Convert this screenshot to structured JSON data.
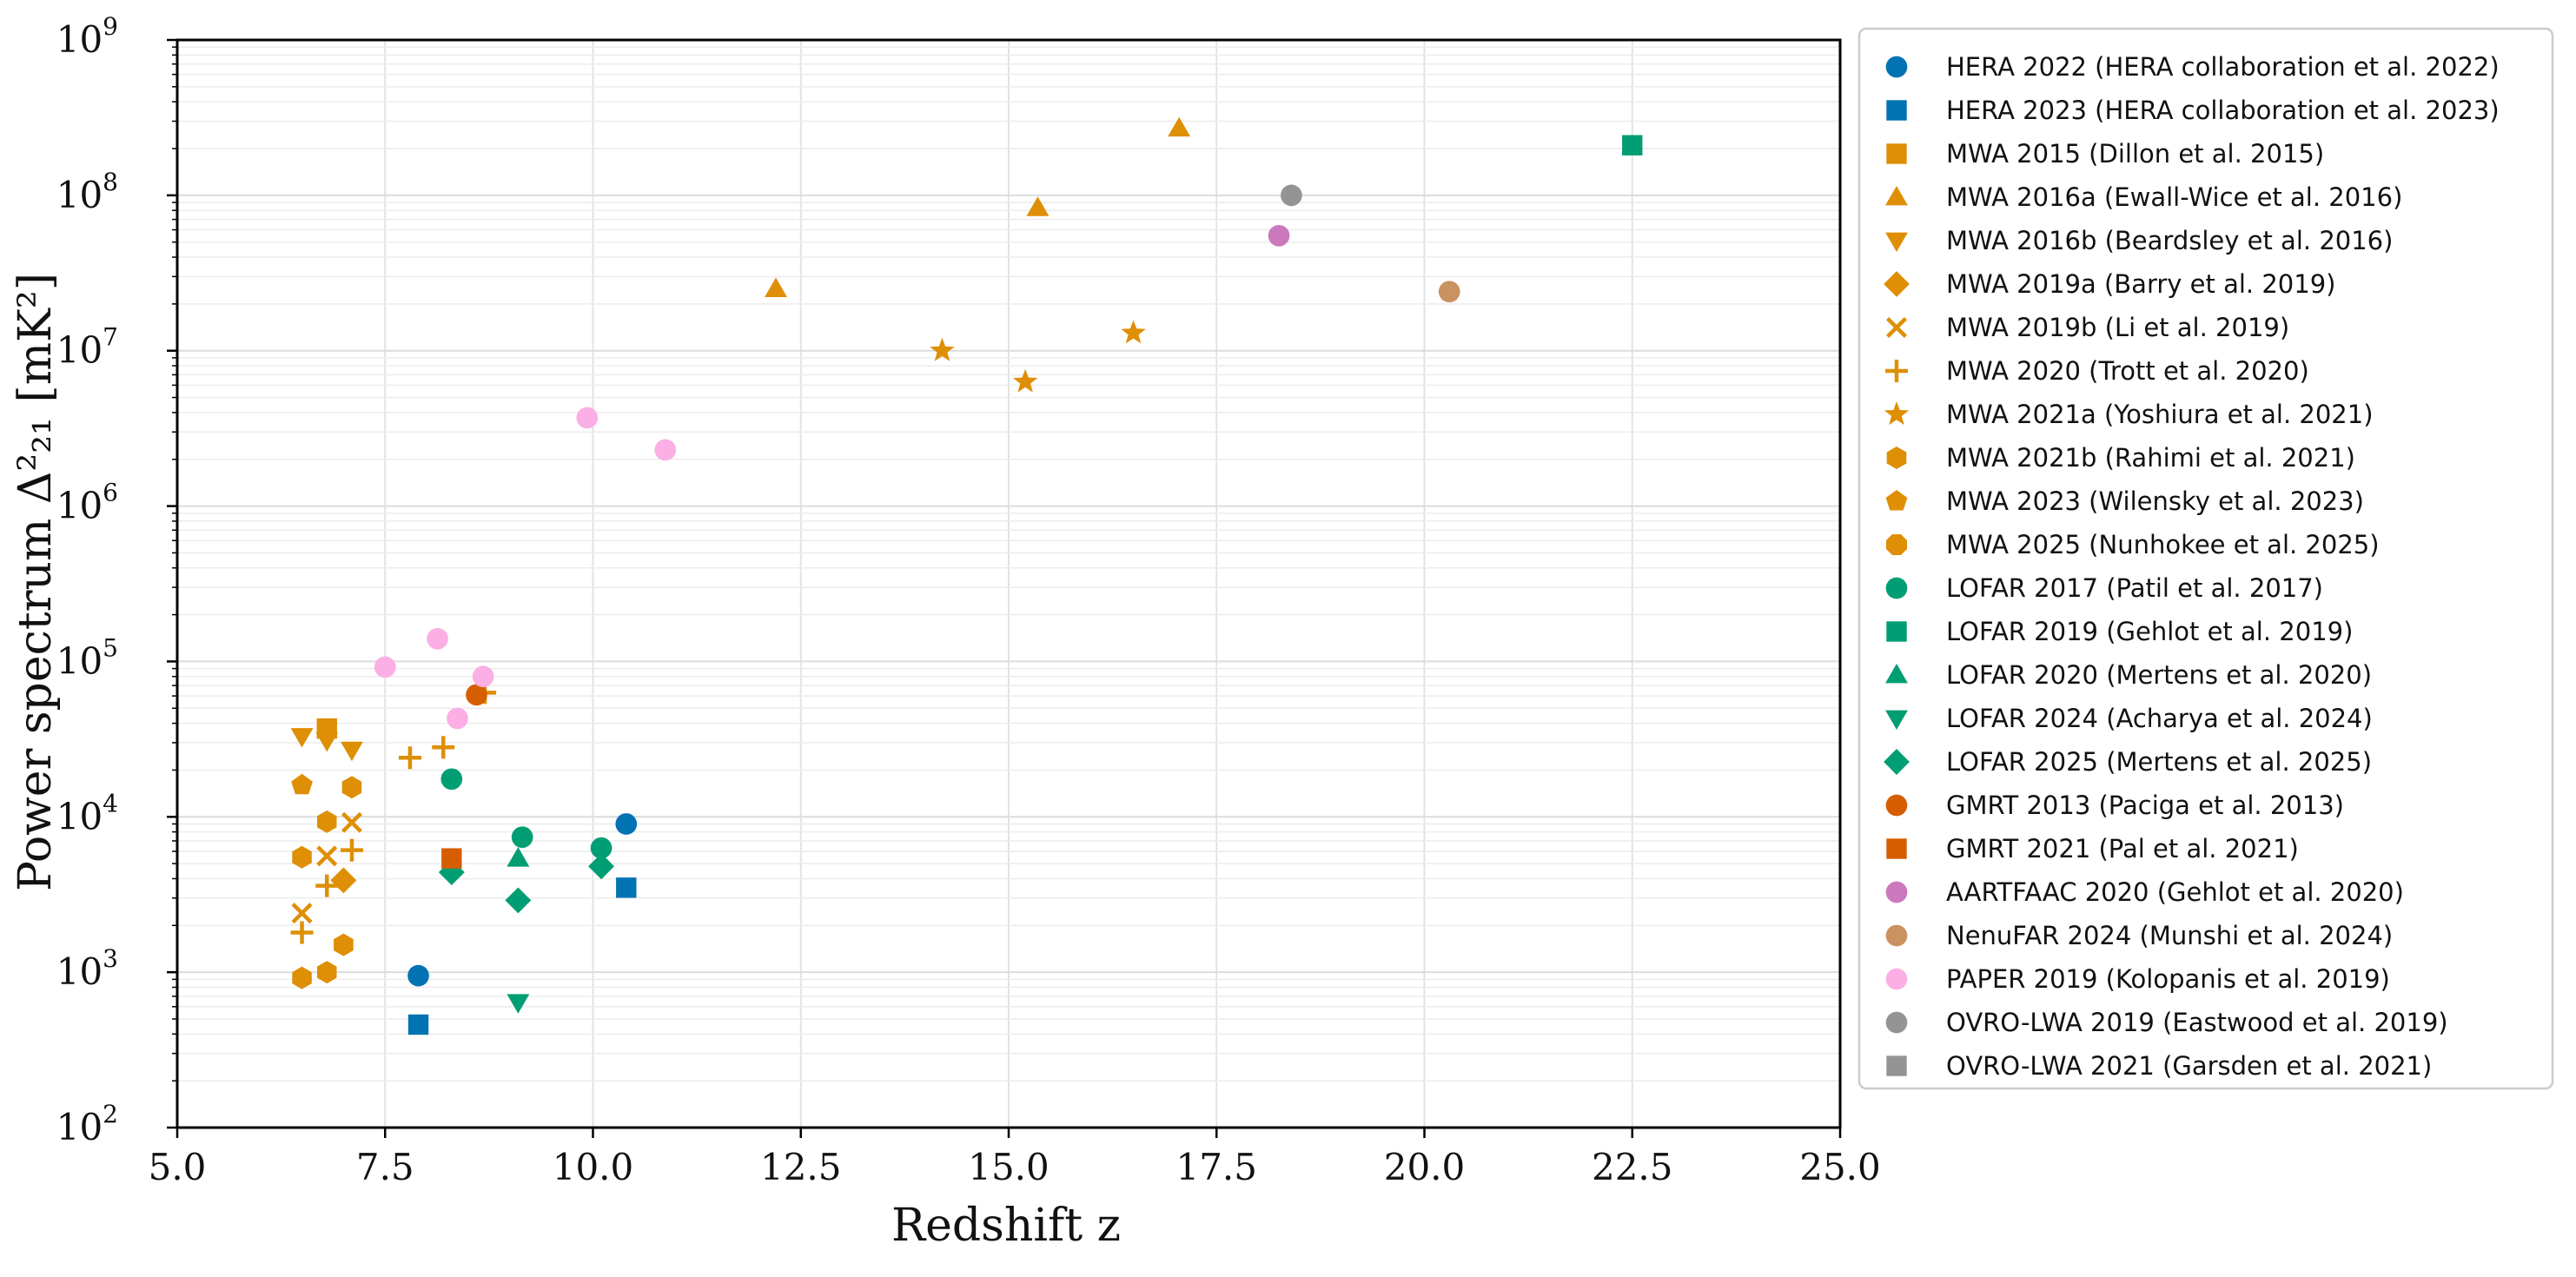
{
  "chart_data": {
    "type": "scatter",
    "xlabel": "Redshift z",
    "ylabel": "Power spectrum Δ²₂₁ [mK²]",
    "xlim": [
      5.0,
      25.0
    ],
    "ylim": [
      100,
      1000000000
    ],
    "yscale": "log",
    "grid": true,
    "legend_position": "outside-right",
    "x_ticks": [
      "5.0",
      "7.5",
      "10.0",
      "12.5",
      "15.0",
      "17.5",
      "20.0",
      "22.5",
      "25.0"
    ],
    "y_tick_exponents": [
      "2",
      "3",
      "4",
      "5",
      "6",
      "7",
      "8",
      "9"
    ],
    "series": [
      {
        "name": "HERA 2022 (HERA collaboration et al. 2022)",
        "marker": "circle",
        "color": "#0173b2",
        "points": [
          [
            7.9,
            950
          ],
          [
            10.4,
            9000
          ]
        ]
      },
      {
        "name": "HERA 2023 (HERA collaboration et al. 2023)",
        "marker": "square",
        "color": "#0173b2",
        "points": [
          [
            7.9,
            460
          ],
          [
            10.4,
            3500
          ]
        ]
      },
      {
        "name": "MWA 2015 (Dillon et al. 2015)",
        "marker": "square",
        "color": "#de8f05",
        "points": [
          [
            6.8,
            37000
          ]
        ]
      },
      {
        "name": "MWA 2016a (Ewall-Wice et al. 2016)",
        "marker": "triangle-up",
        "color": "#de8f05",
        "points": [
          [
            12.2,
            25000000
          ],
          [
            15.35,
            83000000
          ],
          [
            17.05,
            270000000
          ]
        ]
      },
      {
        "name": "MWA 2016b (Beardsley et al. 2016)",
        "marker": "triangle-down",
        "color": "#de8f05",
        "points": [
          [
            6.5,
            33000
          ],
          [
            6.8,
            31000
          ],
          [
            7.1,
            27000
          ]
        ]
      },
      {
        "name": "MWA 2019a (Barry et al. 2019)",
        "marker": "diamond",
        "color": "#de8f05",
        "points": [
          [
            7.0,
            3900
          ]
        ]
      },
      {
        "name": "MWA 2019b (Li et al. 2019)",
        "marker": "x",
        "color": "#de8f05",
        "points": [
          [
            6.5,
            2400
          ],
          [
            6.8,
            5600
          ],
          [
            7.1,
            9200
          ]
        ]
      },
      {
        "name": "MWA 2020 (Trott et al. 2020)",
        "marker": "plus",
        "color": "#de8f05",
        "points": [
          [
            6.5,
            1800
          ],
          [
            6.8,
            3600
          ],
          [
            7.1,
            6100
          ],
          [
            7.8,
            24000
          ],
          [
            8.2,
            28000
          ],
          [
            8.7,
            63000
          ]
        ]
      },
      {
        "name": "MWA 2021a (Yoshiura et al. 2021)",
        "marker": "star",
        "color": "#de8f05",
        "points": [
          [
            14.2,
            10000000
          ],
          [
            15.2,
            6300000
          ],
          [
            16.5,
            13000000
          ]
        ]
      },
      {
        "name": "MWA 2021b (Rahimi et al. 2021)",
        "marker": "hexagon",
        "color": "#de8f05",
        "points": [
          [
            6.5,
            920
          ],
          [
            6.8,
            1000
          ],
          [
            7.0,
            1500
          ],
          [
            6.5,
            5500
          ],
          [
            6.8,
            9300
          ],
          [
            7.1,
            15500
          ]
        ]
      },
      {
        "name": "MWA 2023 (Wilensky et al. 2023)",
        "marker": "pentagon",
        "color": "#de8f05",
        "points": [
          [
            6.5,
            16000
          ]
        ]
      },
      {
        "name": "MWA 2025 (Nunhokee et al. 2025)",
        "marker": "octagon",
        "color": "#de8f05",
        "points": []
      },
      {
        "name": "LOFAR 2017 (Patil et al. 2017)",
        "marker": "circle",
        "color": "#029e73",
        "points": [
          [
            8.3,
            17500
          ],
          [
            9.15,
            7400
          ],
          [
            10.1,
            6300
          ]
        ]
      },
      {
        "name": "LOFAR 2019 (Gehlot et al. 2019)",
        "marker": "square",
        "color": "#029e73",
        "points": [
          [
            22.5,
            210000000
          ]
        ]
      },
      {
        "name": "LOFAR 2020 (Mertens et al. 2020)",
        "marker": "triangle-up",
        "color": "#029e73",
        "points": [
          [
            9.1,
            5400
          ]
        ]
      },
      {
        "name": "LOFAR 2024 (Acharya et al. 2024)",
        "marker": "triangle-down",
        "color": "#029e73",
        "points": [
          [
            9.1,
            640
          ]
        ]
      },
      {
        "name": "LOFAR 2025 (Mertens et al. 2025)",
        "marker": "diamond",
        "color": "#029e73",
        "points": [
          [
            8.3,
            4400
          ],
          [
            9.1,
            2900
          ],
          [
            10.1,
            4800
          ]
        ]
      },
      {
        "name": "GMRT 2013 (Paciga et al. 2013)",
        "marker": "circle",
        "color": "#d55e00",
        "points": [
          [
            8.6,
            61000
          ]
        ]
      },
      {
        "name": "GMRT 2021 (Pal et al. 2021)",
        "marker": "square",
        "color": "#d55e00",
        "points": [
          [
            8.3,
            5400
          ]
        ]
      },
      {
        "name": "AARTFAAC 2020 (Gehlot et al. 2020)",
        "marker": "circle",
        "color": "#cc78bc",
        "points": [
          [
            18.25,
            55000000
          ]
        ]
      },
      {
        "name": "NenuFAR 2024 (Munshi et al. 2024)",
        "marker": "circle",
        "color": "#ca9161",
        "points": [
          [
            20.3,
            24000000
          ]
        ]
      },
      {
        "name": "PAPER 2019 (Kolopanis et al. 2019)",
        "marker": "circle",
        "color": "#fbafe4",
        "points": [
          [
            7.5,
            92000
          ],
          [
            8.13,
            140000
          ],
          [
            8.37,
            43000
          ],
          [
            8.68,
            80000
          ],
          [
            9.93,
            3700000
          ],
          [
            10.87,
            2300000
          ]
        ]
      },
      {
        "name": "OVRO-LWA 2019 (Eastwood et al. 2019)",
        "marker": "circle",
        "color": "#949494",
        "points": [
          [
            18.4,
            100000000
          ]
        ]
      },
      {
        "name": "OVRO-LWA 2021 (Garsden et al. 2021)",
        "marker": "square",
        "color": "#949494",
        "points": []
      }
    ]
  }
}
